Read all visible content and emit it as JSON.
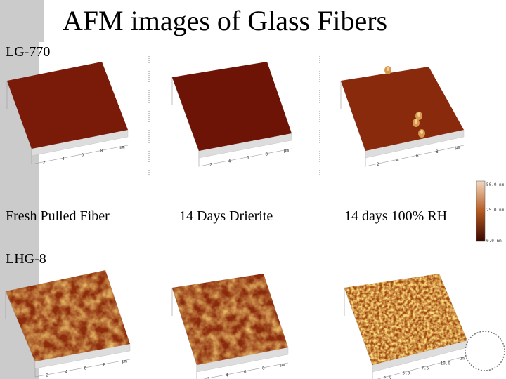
{
  "title": "AFM images of Glass Fibers",
  "rows": [
    {
      "label": "LG-770"
    },
    {
      "label": "LHG-8"
    }
  ],
  "columns": [
    {
      "label": "Fresh Pulled Fiber"
    },
    {
      "label": "14 Days Drierite"
    },
    {
      "label": "14 days 100% RH"
    }
  ],
  "color_scale": {
    "labels": [
      "50.0 nm",
      "25.0 nm",
      "0.0 nm"
    ]
  },
  "images": [
    {
      "ticks": [
        "2",
        "4",
        "6",
        "8",
        "µm"
      ]
    },
    {
      "ticks": [
        "2",
        "4",
        "6",
        "8",
        "µm"
      ]
    },
    {
      "ticks": [
        "2",
        "4",
        "6",
        "8",
        "µm"
      ]
    },
    {
      "ticks": [
        "2",
        "4",
        "6",
        "8",
        "µm"
      ]
    },
    {
      "ticks": [
        "2",
        "4",
        "6",
        "8",
        "µm"
      ]
    },
    {
      "ticks": [
        "2.5",
        "5.0",
        "7.5",
        "10.0",
        "µm"
      ]
    }
  ]
}
